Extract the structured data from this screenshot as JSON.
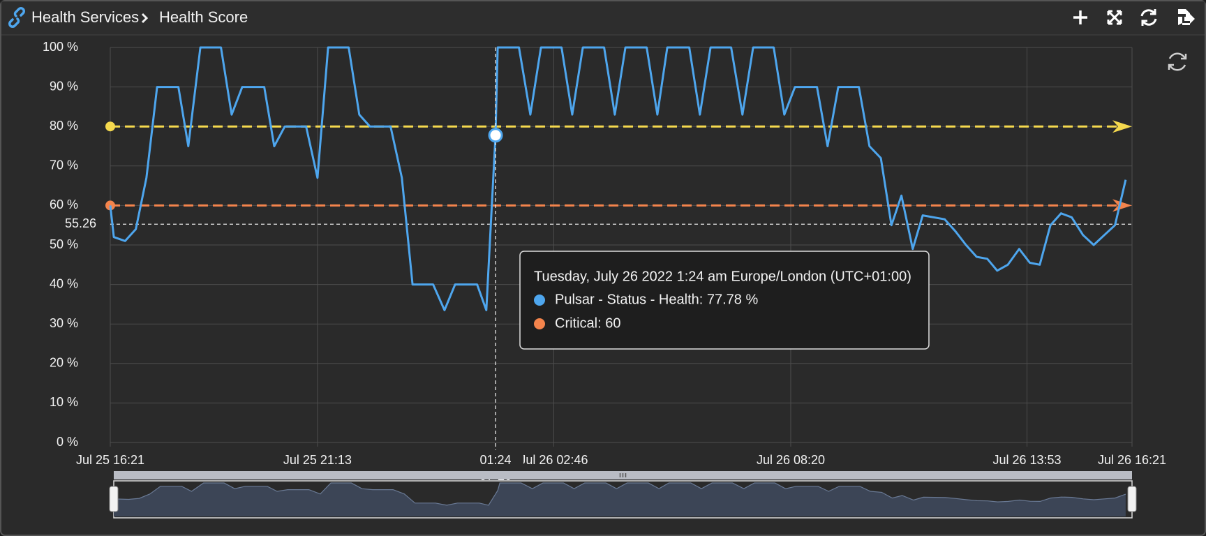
{
  "header": {
    "breadcrumb": [
      "Health Services",
      "Health Score"
    ]
  },
  "chart_data": {
    "type": "line",
    "x": [
      "2022-07-25T16:21",
      "2022-07-25T16:26",
      "2022-07-25T16:42",
      "2022-07-25T16:57",
      "2022-07-25T17:12",
      "2022-07-25T17:27",
      "2022-07-25T17:57",
      "2022-07-25T18:11",
      "2022-07-25T18:28",
      "2022-07-25T18:57",
      "2022-07-25T19:12",
      "2022-07-25T19:27",
      "2022-07-25T19:58",
      "2022-07-25T20:12",
      "2022-07-25T20:27",
      "2022-07-25T20:57",
      "2022-07-25T21:13",
      "2022-07-25T21:28",
      "2022-07-25T21:57",
      "2022-07-25T22:12",
      "2022-07-25T22:27",
      "2022-07-25T22:56",
      "2022-07-25T23:12",
      "2022-07-25T23:27",
      "2022-07-25T23:56",
      "2022-07-26T00:12",
      "2022-07-26T00:27",
      "2022-07-26T00:58",
      "2022-07-26T01:11",
      "2022-07-26T01:24",
      "2022-07-26T01:27",
      "2022-07-26T01:57",
      "2022-07-26T02:13",
      "2022-07-26T02:28",
      "2022-07-26T02:57",
      "2022-07-26T03:12",
      "2022-07-26T03:27",
      "2022-07-26T03:57",
      "2022-07-26T04:12",
      "2022-07-26T04:27",
      "2022-07-26T04:57",
      "2022-07-26T05:12",
      "2022-07-26T05:26",
      "2022-07-26T05:57",
      "2022-07-26T06:12",
      "2022-07-26T06:27",
      "2022-07-26T06:56",
      "2022-07-26T07:12",
      "2022-07-26T07:27",
      "2022-07-26T07:56",
      "2022-07-26T08:11",
      "2022-07-26T08:26",
      "2022-07-26T08:57",
      "2022-07-26T09:12",
      "2022-07-26T09:27",
      "2022-07-26T09:56",
      "2022-07-26T10:11",
      "2022-07-26T10:27",
      "2022-07-26T10:42",
      "2022-07-26T10:56",
      "2022-07-26T11:12",
      "2022-07-26T11:26",
      "2022-07-26T11:57",
      "2022-07-26T12:12",
      "2022-07-26T12:27",
      "2022-07-26T12:42",
      "2022-07-26T12:57",
      "2022-07-26T13:11",
      "2022-07-26T13:26",
      "2022-07-26T13:42",
      "2022-07-26T13:57",
      "2022-07-26T14:11",
      "2022-07-26T14:26",
      "2022-07-26T14:41",
      "2022-07-26T14:56",
      "2022-07-26T15:12",
      "2022-07-26T15:27",
      "2022-07-26T15:42",
      "2022-07-26T15:57",
      "2022-07-26T16:12"
    ],
    "series": [
      {
        "name": "Pulsar - Status - Health",
        "color": "#4ea6ee",
        "values": [
          60,
          52,
          51,
          54,
          67,
          90,
          90,
          75,
          100,
          100,
          83,
          90,
          90,
          75,
          80,
          80,
          67,
          100,
          100,
          83,
          80,
          80,
          67,
          40,
          40,
          33.5,
          40,
          40,
          33.5,
          77.78,
          100,
          100,
          83,
          100,
          100,
          83,
          100,
          100,
          83,
          100,
          100,
          83,
          100,
          100,
          83,
          100,
          100,
          83,
          100,
          100,
          83,
          90,
          90,
          75,
          90,
          90,
          75,
          72,
          55,
          62.5,
          49,
          57.5,
          56.5,
          53.5,
          50,
          47,
          46.5,
          43.5,
          45,
          49,
          45.5,
          45,
          55,
          58,
          57,
          52.5,
          50,
          52.5,
          55,
          66.5
        ]
      }
    ],
    "thresholds": [
      {
        "name": "Critical",
        "value": 60,
        "color": "#f4844c"
      },
      {
        "value": 80,
        "color": "#f5d94e"
      }
    ],
    "reference_line": 55.26,
    "xlim": [
      "2022-07-25T16:21",
      "2022-07-26T16:21"
    ],
    "xticks": [
      {
        "value": "2022-07-25T16:21",
        "label": "Jul 25 16:21"
      },
      {
        "value": "2022-07-25T21:13",
        "label": "Jul 25 21:13"
      },
      {
        "value": "2022-07-26T02:46",
        "label": "Jul 26 02:46"
      },
      {
        "value": "2022-07-26T08:20",
        "label": "Jul 26 08:20"
      },
      {
        "value": "2022-07-26T13:53",
        "label": "Jul 26 13:53"
      },
      {
        "value": "2022-07-26T16:21",
        "label": "Jul 26 16:21"
      }
    ],
    "ylim": [
      0,
      100
    ],
    "yticks": [
      {
        "value": 0,
        "label": "0 %"
      },
      {
        "value": 10,
        "label": "10 %"
      },
      {
        "value": 20,
        "label": "20 %"
      },
      {
        "value": 30,
        "label": "30 %"
      },
      {
        "value": 40,
        "label": "40 %"
      },
      {
        "value": 50,
        "label": "50 %"
      },
      {
        "value": 60,
        "label": "60 %"
      },
      {
        "value": 70,
        "label": "70 %"
      },
      {
        "value": 80,
        "label": "80 %"
      },
      {
        "value": 90,
        "label": "90 %"
      },
      {
        "value": 100,
        "label": "100 %"
      }
    ],
    "grid": true,
    "crosshair": {
      "x": "2022-07-26T01:24",
      "label": [
        "01:24",
        "07-26"
      ]
    },
    "tooltip": {
      "title": "Tuesday, July 26 2022 1:24 am Europe/London (UTC+01:00)",
      "entries": [
        {
          "text": "Pulsar - Status - Health: 77.78 %",
          "color": "#4ea6ee"
        },
        {
          "text": "Critical: 60",
          "color": "#f4844c"
        }
      ]
    }
  }
}
